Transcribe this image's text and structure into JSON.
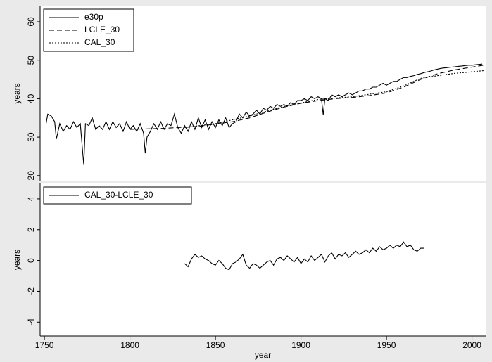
{
  "chart_data": [
    {
      "type": "line",
      "ylabel": "years",
      "xlim": [
        1747.5,
        2008
      ],
      "ylim": [
        18.5,
        64.2
      ],
      "yticks": [
        20,
        30,
        40,
        50,
        60
      ],
      "legend": "top-left",
      "series": [
        {
          "name": "e30p",
          "color": "#000000",
          "linestyle": "solid",
          "x": [
            1751,
            1752,
            1754,
            1756,
            1757,
            1759,
            1761,
            1763,
            1765,
            1767,
            1769,
            1771,
            1773,
            1774,
            1776,
            1778,
            1780,
            1782,
            1784,
            1786,
            1788,
            1790,
            1792,
            1794,
            1796,
            1798,
            1800,
            1802,
            1804,
            1806,
            1808,
            1809,
            1810,
            1812,
            1814,
            1816,
            1818,
            1820,
            1822,
            1824,
            1826,
            1828,
            1830,
            1832,
            1834,
            1836,
            1838,
            1840,
            1842,
            1844,
            1846,
            1848,
            1850,
            1852,
            1854,
            1856,
            1858,
            1860,
            1862,
            1864,
            1866,
            1868,
            1870,
            1872,
            1874,
            1876,
            1878,
            1880,
            1882,
            1884,
            1886,
            1888,
            1890,
            1892,
            1894,
            1896,
            1898,
            1900,
            1902,
            1904,
            1906,
            1908,
            1910,
            1912,
            1913,
            1914,
            1916,
            1918,
            1920,
            1922,
            1924,
            1926,
            1928,
            1930,
            1932,
            1934,
            1936,
            1938,
            1940,
            1942,
            1944,
            1946,
            1948,
            1950,
            1952,
            1954,
            1956,
            1958,
            1960,
            1962,
            1964,
            1966,
            1968,
            1970,
            1972,
            1974,
            1976,
            1978,
            1980,
            1982,
            1984,
            1986,
            1988,
            1990,
            1992,
            1994,
            1996,
            1998,
            2000,
            2002,
            2004,
            2006
          ],
          "values": [
            33.5,
            36,
            35.5,
            34,
            29.5,
            33.5,
            31.5,
            33,
            32,
            34,
            32.5,
            33.5,
            22.8,
            33.5,
            33,
            35,
            32,
            33,
            32,
            34,
            32,
            34,
            32.5,
            33.5,
            31.5,
            34,
            32,
            33,
            31.5,
            33.5,
            31,
            25.8,
            30,
            31.5,
            33.5,
            32,
            34,
            32,
            33.5,
            33,
            36,
            32.5,
            31,
            33,
            31.5,
            34,
            32,
            35,
            32.5,
            34.5,
            32,
            34,
            32.5,
            34.5,
            33,
            35,
            32.5,
            33.5,
            34,
            36,
            35,
            36.5,
            35.5,
            36,
            37,
            36,
            37.5,
            37,
            38,
            37.5,
            38.5,
            38,
            38.5,
            38,
            39,
            38.5,
            39.5,
            39.5,
            40,
            39.5,
            40.5,
            40,
            40.5,
            40,
            35.8,
            40,
            39.5,
            41,
            40.5,
            41,
            40.5,
            41,
            41.5,
            41,
            41.5,
            42,
            42,
            42.5,
            42.5,
            43,
            43,
            43.5,
            44,
            43.5,
            44,
            44.5,
            44.5,
            45,
            45.5,
            45.5,
            45.8,
            46,
            46.3,
            46.5,
            46.8,
            47,
            47.2,
            47.5,
            47.7,
            47.9,
            48,
            48.1,
            48.2,
            48.3,
            48.4,
            48.5,
            48.6,
            48.7,
            48.7,
            48.8,
            48.9,
            49
          ]
        },
        {
          "name": "LCLE_30",
          "color": "#000000",
          "linestyle": "dashed",
          "x": [
            1800,
            1820,
            1840,
            1860,
            1870,
            1880,
            1890,
            1900,
            1910,
            1920,
            1930,
            1940,
            1950,
            1960,
            1970,
            1980,
            1990,
            2000,
            2007
          ],
          "values": [
            32,
            32.3,
            32.8,
            34,
            35,
            36.5,
            37.8,
            38.8,
            39.5,
            40,
            40.3,
            40.8,
            41.5,
            43,
            45,
            46.5,
            47.5,
            48.2,
            48.7
          ]
        },
        {
          "name": "CAL_30",
          "color": "#000000",
          "linestyle": "dotted",
          "x": [
            1832,
            1850,
            1870,
            1890,
            1910,
            1930,
            1950,
            1960,
            1970,
            1980,
            1990,
            2000,
            2007
          ],
          "values": [
            32.5,
            33.5,
            35.5,
            38,
            39.8,
            40.5,
            41.8,
            43.3,
            45.3,
            46,
            46.6,
            47,
            47.3
          ]
        }
      ]
    },
    {
      "type": "line",
      "ylabel": "years",
      "xlabel": "year",
      "xlim": [
        1747.5,
        2008
      ],
      "xticks": [
        1750,
        1800,
        1850,
        1900,
        1950,
        2000
      ],
      "ylim": [
        -4.9,
        5
      ],
      "yticks": [
        -4,
        -2,
        0,
        2,
        4
      ],
      "legend": "top-left",
      "series": [
        {
          "name": "CAL_30-LCLE_30",
          "color": "#000000",
          "linestyle": "solid",
          "x": [
            1832,
            1834,
            1836,
            1838,
            1840,
            1842,
            1844,
            1846,
            1848,
            1850,
            1852,
            1854,
            1856,
            1858,
            1860,
            1862,
            1864,
            1866,
            1868,
            1870,
            1872,
            1874,
            1876,
            1878,
            1880,
            1882,
            1884,
            1886,
            1888,
            1890,
            1892,
            1894,
            1896,
            1898,
            1900,
            1902,
            1904,
            1906,
            1908,
            1910,
            1912,
            1914,
            1916,
            1918,
            1920,
            1922,
            1924,
            1926,
            1928,
            1930,
            1932,
            1934,
            1936,
            1938,
            1940,
            1942,
            1944,
            1946,
            1948,
            1950,
            1952,
            1954,
            1956,
            1958,
            1960,
            1962,
            1964,
            1966,
            1968,
            1970,
            1972
          ],
          "values": [
            -0.2,
            -0.4,
            0.1,
            0.4,
            0.2,
            0.3,
            0.1,
            0,
            -0.2,
            -0.3,
            0,
            -0.2,
            -0.5,
            -0.6,
            -0.2,
            -0.1,
            0.1,
            0.4,
            -0.3,
            -0.5,
            -0.2,
            -0.3,
            -0.5,
            -0.3,
            -0.1,
            0,
            -0.3,
            0.1,
            0.2,
            0,
            0.3,
            0.1,
            -0.1,
            0.2,
            -0.2,
            0.1,
            -0.1,
            0.3,
            0,
            0.2,
            0.4,
            -0.1,
            0.3,
            0.5,
            0.1,
            0.4,
            0.3,
            0.5,
            0.2,
            0.4,
            0.6,
            0.4,
            0.5,
            0.7,
            0.5,
            0.8,
            0.6,
            0.9,
            0.7,
            0.8,
            1,
            0.8,
            1,
            0.9,
            1.2,
            0.9,
            1,
            0.7,
            0.6,
            0.8,
            0.8
          ]
        }
      ]
    }
  ]
}
